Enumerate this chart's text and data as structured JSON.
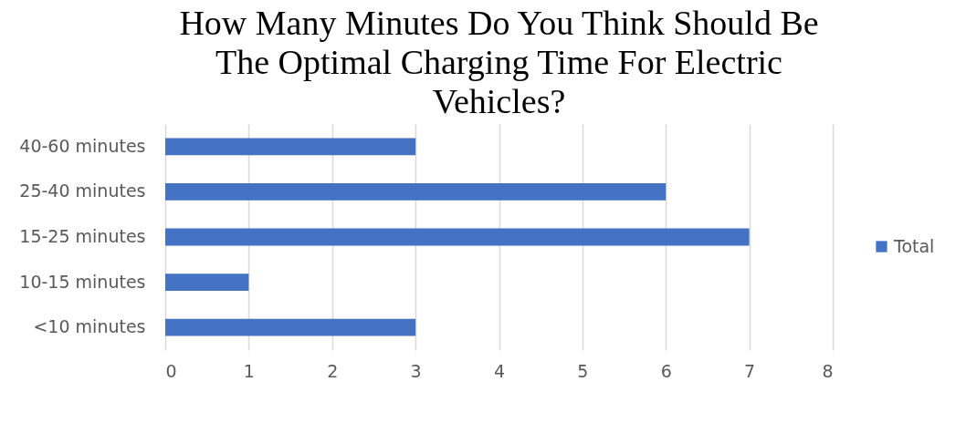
{
  "chart_data": {
    "type": "bar",
    "orientation": "horizontal",
    "title": "How Many Minutes Do You Think Should Be The Optimal Charging Time For Electric Vehicles?",
    "categories": [
      "40-60 minutes",
      "25-40 minutes",
      "15-25 minutes",
      "10-15 minutes",
      "<10 minutes"
    ],
    "series": [
      {
        "name": "Total",
        "color": "#4472c4",
        "values": [
          3,
          6,
          7,
          1,
          3
        ]
      }
    ],
    "xlim": [
      0,
      8
    ],
    "xticks": [
      0,
      1,
      2,
      3,
      4,
      5,
      6,
      7,
      8
    ],
    "grid": "x",
    "legend": "right"
  }
}
